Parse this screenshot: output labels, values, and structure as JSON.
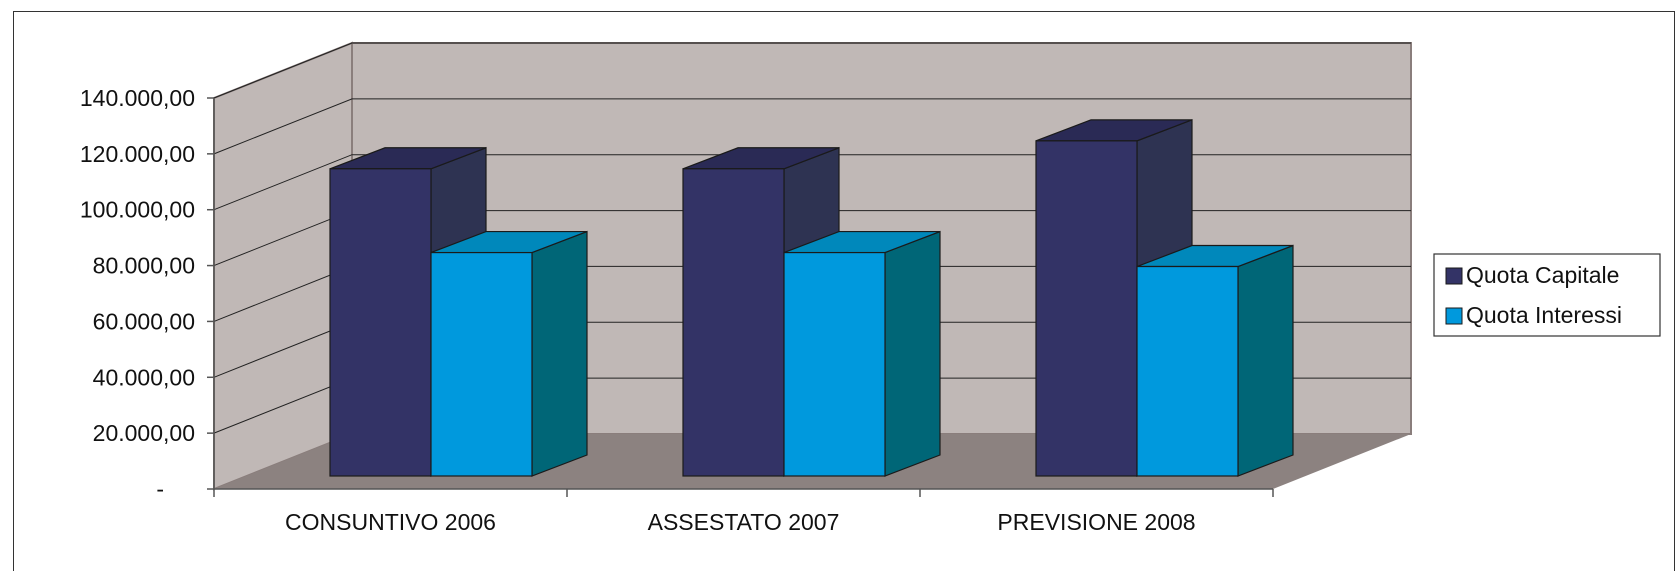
{
  "chart_data": {
    "type": "bar",
    "categories": [
      "CONSUNTIVO 2006",
      "ASSESTATO 2007",
      "PREVISIONE 2008"
    ],
    "series": [
      {
        "name": "Quota Capitale",
        "values": [
          110000,
          110000,
          120000
        ]
      },
      {
        "name": "Quota Interessi",
        "values": [
          80000,
          80000,
          75000
        ]
      }
    ],
    "y_ticks": [
      "-",
      "20.000,00",
      "40.000,00",
      "60.000,00",
      "80.000,00",
      "100.000,00",
      "120.000,00",
      "140.000,00"
    ],
    "ylim": [
      0,
      140000
    ],
    "legend_position": "right",
    "grid": true,
    "colors": {
      "series_front": [
        "#333366",
        "#0099dd"
      ],
      "series_top": [
        "#2a2a55",
        "#0088bb"
      ],
      "series_side": [
        "#2e3352",
        "#006677"
      ],
      "back_wall": "#c0b8b6",
      "side_wall": "#c0b8b6",
      "floor": "#8c8280"
    }
  }
}
